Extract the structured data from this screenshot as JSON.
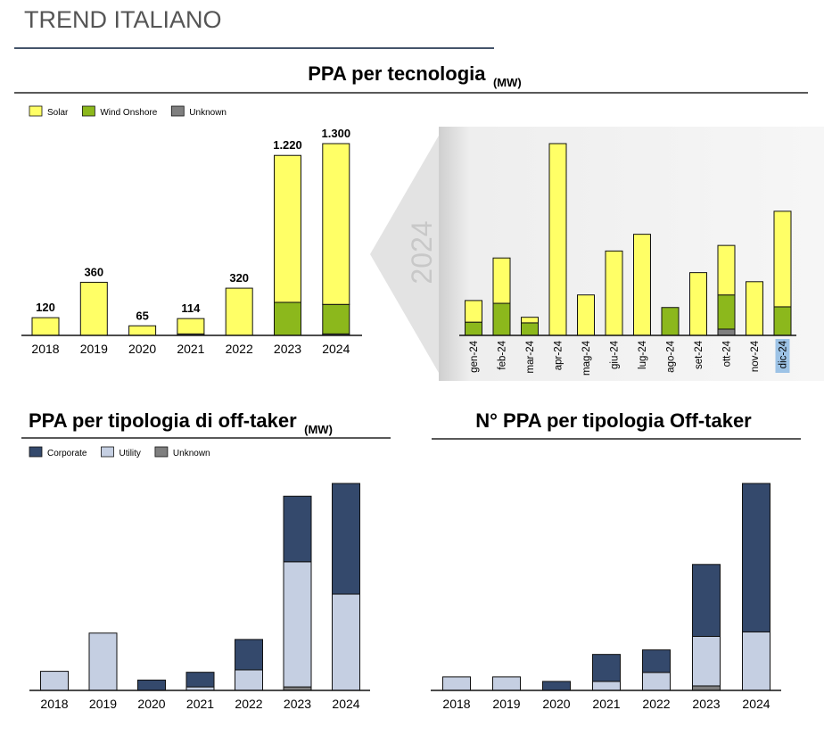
{
  "header": {
    "title": "TREND ITALIANO"
  },
  "chart_data": [
    {
      "type": "stacked_bar",
      "title": "PPA per tecnologia",
      "units": "(MW)",
      "categories": [
        "2018",
        "2019",
        "2020",
        "2021",
        "2022",
        "2023",
        "2024"
      ],
      "series": [
        {
          "name": "Unknown",
          "color": "#7f7f7f",
          "values": [
            0,
            0,
            0,
            10,
            0,
            0,
            10
          ]
        },
        {
          "name": "Wind Onshore",
          "color": "#8cb81c",
          "values": [
            0,
            0,
            0,
            0,
            0,
            224,
            200
          ]
        },
        {
          "name": "Solar",
          "color": "#ffff66",
          "values": [
            120,
            360,
            65,
            104,
            320,
            996,
            1090
          ]
        }
      ],
      "totals": [
        120,
        360,
        65,
        114,
        320,
        1220,
        1300
      ],
      "value_labels": [
        "120",
        "360",
        "65",
        "114",
        "320",
        "1.220",
        "1.300"
      ],
      "legend": true
    },
    {
      "type": "stacked_bar",
      "annotation": "2024",
      "categories": [
        "gen-24",
        "feb-24",
        "mar-24",
        "apr-24",
        "mag-24",
        "giu-24",
        "lug-24",
        "ago-24",
        "set-24",
        "ott-24",
        "nov-24",
        "dic-24"
      ],
      "series": [
        {
          "color": "#7f7f7f",
          "values": [
            0,
            0,
            0,
            0,
            0,
            0,
            0,
            0,
            0,
            9,
            0,
            0
          ]
        },
        {
          "color": "#8cb81c",
          "values": [
            19,
            46,
            18,
            0,
            0,
            0,
            0,
            40,
            0,
            49,
            0,
            41
          ]
        },
        {
          "color": "#ffff66",
          "values": [
            31,
            65,
            8,
            275,
            58,
            121,
            145,
            0,
            90,
            71,
            77,
            137
          ]
        }
      ],
      "highlight": "dic-24",
      "highlight_color": "#9dc3e6",
      "legend": false
    },
    {
      "type": "stacked_bar",
      "title": "PPA per tipologia di off-taker",
      "units": "(MW)",
      "categories": [
        "2018",
        "2019",
        "2020",
        "2021",
        "2022",
        "2023",
        "2024"
      ],
      "series": [
        {
          "name": "Unknown",
          "color": "#7f7f7f",
          "values": [
            0,
            0,
            0,
            0,
            0,
            22,
            0
          ]
        },
        {
          "name": "Utility",
          "color": "#c5cfe2",
          "values": [
            120,
            360,
            0,
            22,
            129,
            786,
            605
          ]
        },
        {
          "name": "Corporate",
          "color": "#34496c",
          "values": [
            0,
            0,
            65,
            92,
            191,
            412,
            695
          ]
        }
      ],
      "legend": true
    },
    {
      "type": "stacked_bar",
      "title": "N° PPA per tipologia Off-taker",
      "categories": [
        "2018",
        "2019",
        "2020",
        "2021",
        "2022",
        "2023",
        "2024"
      ],
      "series": [
        {
          "color": "#7f7f7f",
          "values": [
            0,
            0,
            0,
            0,
            0,
            1,
            0
          ]
        },
        {
          "color": "#c5cfe2",
          "values": [
            3,
            3,
            0,
            2,
            4,
            11,
            13
          ]
        },
        {
          "color": "#34496c",
          "values": [
            0,
            0,
            2,
            6,
            5,
            16,
            33
          ]
        }
      ],
      "legend": false
    }
  ]
}
